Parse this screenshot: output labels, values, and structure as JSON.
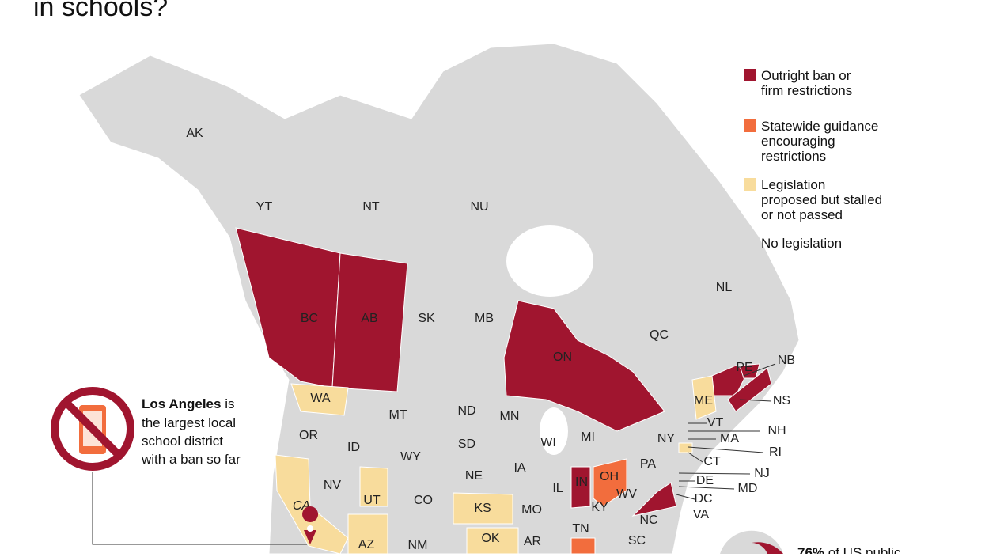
{
  "title": "in schools?",
  "legend": [
    {
      "lines": [
        "Outright ban or",
        "firm restrictions"
      ],
      "color": "#a0152f"
    },
    {
      "lines": [
        "Statewide guidance",
        "encouraging",
        "restrictions"
      ],
      "color": "#f26d3d"
    },
    {
      "lines": [
        "Legislation",
        "proposed but stalled",
        "or not passed"
      ],
      "color": "#f8dc9c"
    },
    {
      "lines": [
        "No legislation"
      ],
      "color": "#d9d9d9"
    }
  ],
  "regions": [
    {
      "label": "AK",
      "category": 3
    },
    {
      "label": "YT",
      "category": 3
    },
    {
      "label": "NT",
      "category": 3
    },
    {
      "label": "NU",
      "category": 3
    },
    {
      "label": "BC",
      "category": 0
    },
    {
      "label": "AB",
      "category": 0
    },
    {
      "label": "SK",
      "category": 3
    },
    {
      "label": "MB",
      "category": 3
    },
    {
      "label": "ON",
      "category": 0
    },
    {
      "label": "QC",
      "category": 3
    },
    {
      "label": "NL",
      "category": 3
    },
    {
      "label": "NB",
      "category": 0
    },
    {
      "label": "PE",
      "category": 0
    },
    {
      "label": "NS",
      "category": 0
    },
    {
      "label": "WA",
      "category": 2
    },
    {
      "label": "OR",
      "category": 3
    },
    {
      "label": "ID",
      "category": 3
    },
    {
      "label": "MT",
      "category": 3
    },
    {
      "label": "WY",
      "category": 3
    },
    {
      "label": "ND",
      "category": 3
    },
    {
      "label": "SD",
      "category": 3
    },
    {
      "label": "MN",
      "category": 3
    },
    {
      "label": "NE",
      "category": 3
    },
    {
      "label": "IA",
      "category": 3
    },
    {
      "label": "WI",
      "category": 3
    },
    {
      "label": "MI",
      "category": 3
    },
    {
      "label": "IL",
      "category": 3
    },
    {
      "label": "IN",
      "category": 0
    },
    {
      "label": "OH",
      "category": 1
    },
    {
      "label": "NY",
      "category": 3
    },
    {
      "label": "PA",
      "category": 3
    },
    {
      "label": "VT",
      "category": 3
    },
    {
      "label": "NH",
      "category": 3
    },
    {
      "label": "ME",
      "category": 2
    },
    {
      "label": "MA",
      "category": 3
    },
    {
      "label": "RI",
      "category": 3
    },
    {
      "label": "CT",
      "category": 2
    },
    {
      "label": "NJ",
      "category": 3
    },
    {
      "label": "DE",
      "category": 3
    },
    {
      "label": "MD",
      "category": 3
    },
    {
      "label": "DC",
      "category": 3
    },
    {
      "label": "VA",
      "category": 0
    },
    {
      "label": "WV",
      "category": 3
    },
    {
      "label": "KY",
      "category": 3
    },
    {
      "label": "TN",
      "category": 3
    },
    {
      "label": "NC",
      "category": 3
    },
    {
      "label": "SC",
      "category": 3
    },
    {
      "label": "NV",
      "category": 3
    },
    {
      "label": "UT",
      "category": 2
    },
    {
      "label": "CO",
      "category": 3
    },
    {
      "label": "KS",
      "category": 2
    },
    {
      "label": "MO",
      "category": 3
    },
    {
      "label": "OK",
      "category": 2
    },
    {
      "label": "AR",
      "category": 3
    },
    {
      "label": "AZ",
      "category": 2
    },
    {
      "label": "NM",
      "category": 3
    },
    {
      "label": "CA",
      "category": 2
    },
    {
      "label": null,
      "category": 1
    }
  ],
  "callout": {
    "bold": "Los Angeles",
    "lines": [
      "is",
      "the largest local",
      "school district",
      "with a ban so far"
    ]
  },
  "stat": {
    "value": "76%",
    "text": "of US public"
  }
}
